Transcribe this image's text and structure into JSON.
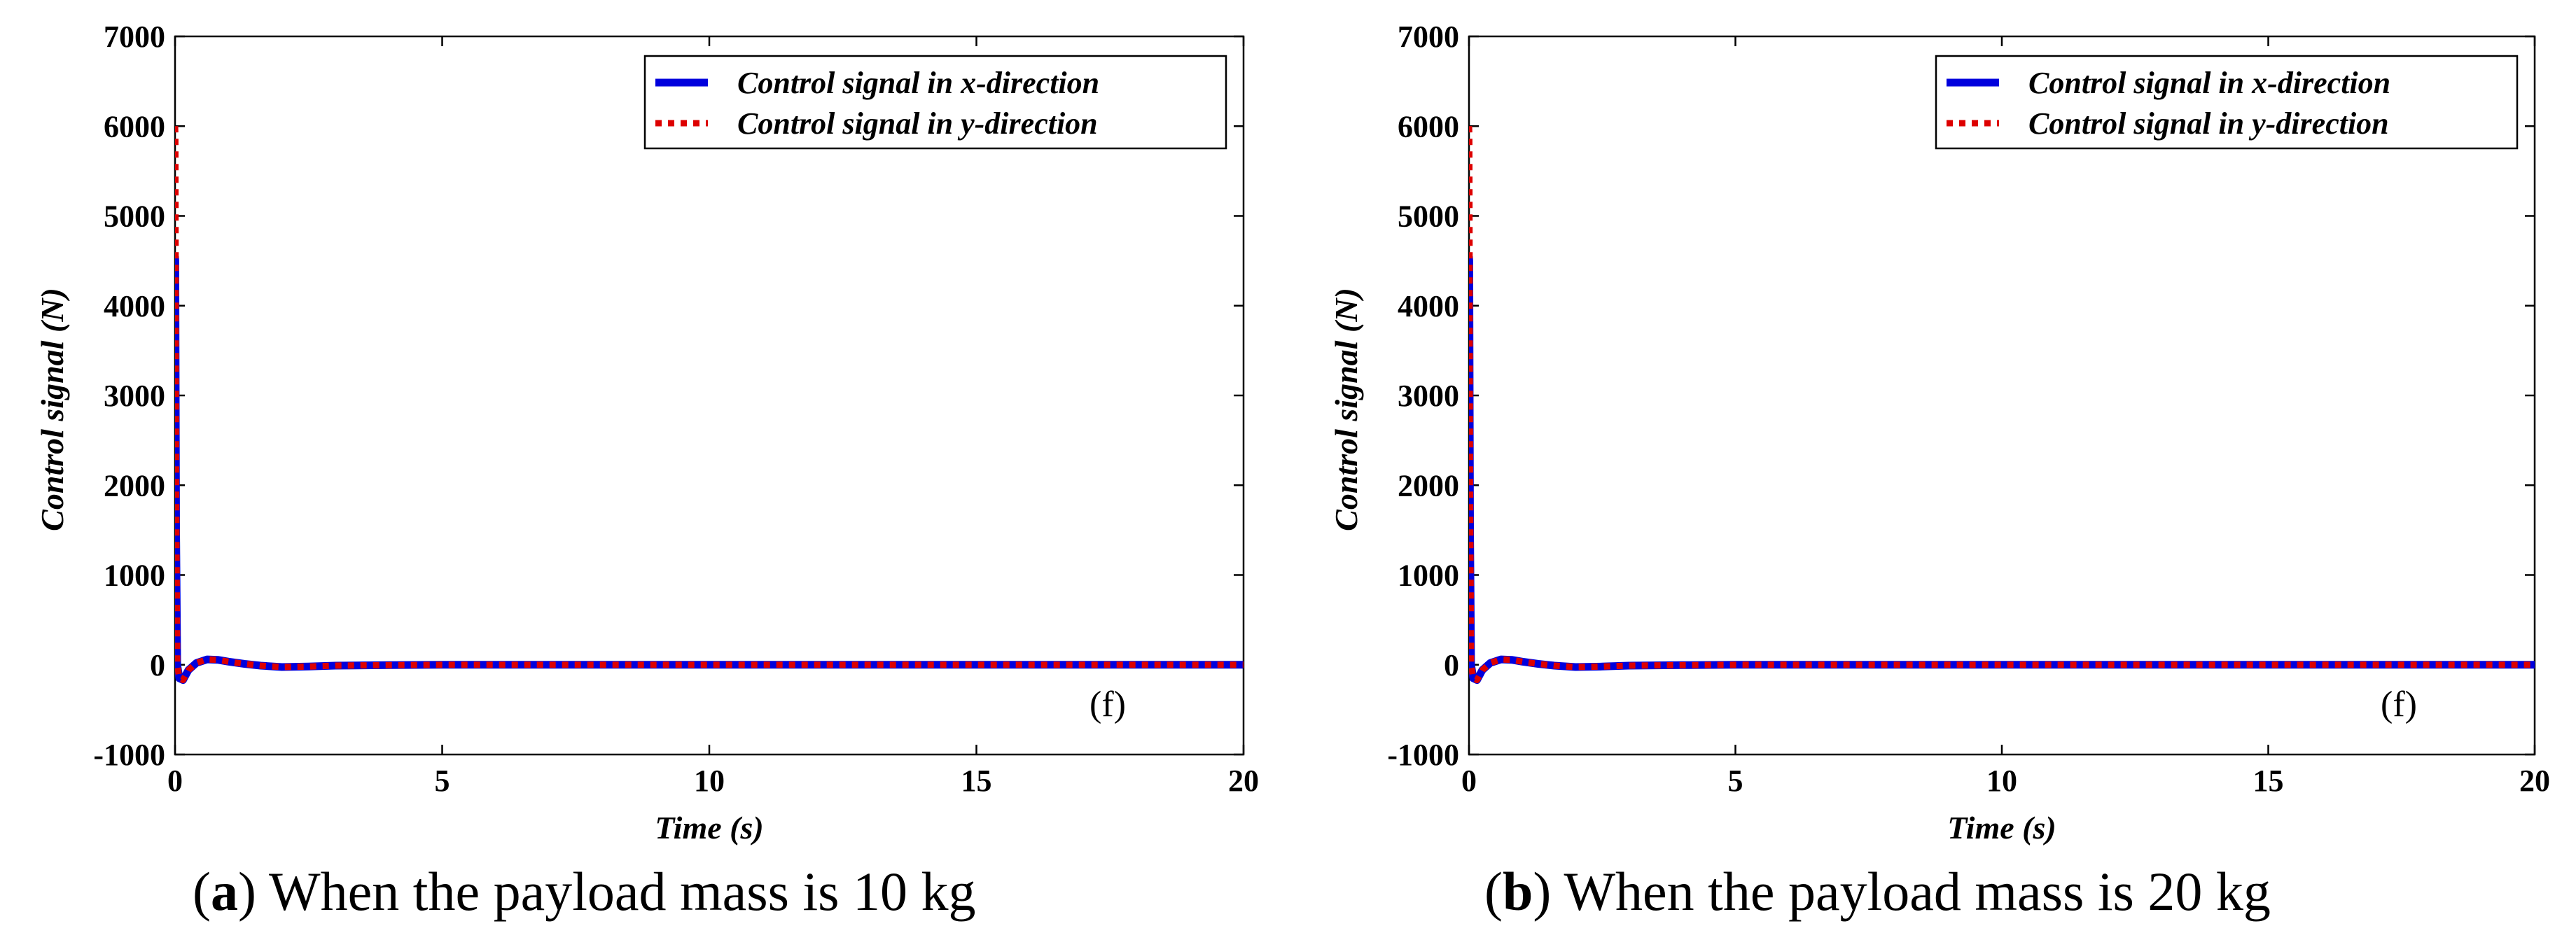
{
  "chart_data": [
    {
      "type": "line",
      "panel": "a",
      "caption_letter": "a",
      "caption_text": "When the payload mass is 10 kg",
      "annotation": "(f)",
      "xlabel": "Time (s)",
      "ylabel": "Control signal  (N)",
      "xlim": [
        0,
        20
      ],
      "ylim": [
        -1000,
        7000
      ],
      "xticks": [
        0,
        5,
        10,
        15,
        20
      ],
      "yticks": [
        -1000,
        0,
        1000,
        2000,
        3000,
        4000,
        5000,
        6000,
        7000
      ],
      "legend_position": "top-right",
      "series": [
        {
          "name": "Control signal in x-direction",
          "color": "#0000dd",
          "style": "solid",
          "x": [
            0,
            0.005,
            0.02,
            0.04,
            0.08,
            0.15,
            0.25,
            0.4,
            0.6,
            0.8,
            1.0,
            1.3,
            1.6,
            2.0,
            2.5,
            3.0,
            4.0,
            5.0,
            7.0,
            10.0,
            15.0,
            20.0
          ],
          "y": [
            4550,
            4500,
            1500,
            0,
            -150,
            -170,
            -60,
            20,
            60,
            55,
            35,
            10,
            -10,
            -25,
            -20,
            -10,
            -4,
            0,
            0,
            0,
            0,
            0
          ]
        },
        {
          "name": "Control signal in y-direction",
          "color": "#dd0000",
          "style": "dotted",
          "x": [
            0,
            0.005,
            0.02,
            0.04,
            0.08,
            0.15,
            0.25,
            0.4,
            0.6,
            0.8,
            1.0,
            1.3,
            1.6,
            2.0,
            2.5,
            3.0,
            4.0,
            5.0,
            7.0,
            10.0,
            15.0,
            20.0
          ],
          "y": [
            6000,
            5900,
            2000,
            0,
            -150,
            -170,
            -60,
            20,
            60,
            55,
            35,
            10,
            -10,
            -25,
            -20,
            -10,
            -4,
            0,
            0,
            0,
            0,
            0
          ]
        }
      ]
    },
    {
      "type": "line",
      "panel": "b",
      "caption_letter": "b",
      "caption_text": "When the payload mass is 20 kg",
      "annotation": "(f)",
      "xlabel": "Time (s)",
      "ylabel": "Control signal  (N)",
      "xlim": [
        0,
        20
      ],
      "ylim": [
        -1000,
        7000
      ],
      "xticks": [
        0,
        5,
        10,
        15,
        20
      ],
      "yticks": [
        -1000,
        0,
        1000,
        2000,
        3000,
        4000,
        5000,
        6000,
        7000
      ],
      "legend_position": "top-right",
      "series": [
        {
          "name": "Control signal in x-direction",
          "color": "#0000dd",
          "style": "solid",
          "x": [
            0,
            0.005,
            0.02,
            0.04,
            0.08,
            0.15,
            0.25,
            0.4,
            0.6,
            0.8,
            1.0,
            1.3,
            1.6,
            2.0,
            2.5,
            3.0,
            4.0,
            5.0,
            7.0,
            10.0,
            15.0,
            20.0
          ],
          "y": [
            4550,
            4500,
            1500,
            0,
            -150,
            -170,
            -60,
            20,
            60,
            55,
            35,
            10,
            -10,
            -25,
            -20,
            -10,
            -4,
            0,
            0,
            0,
            0,
            0
          ]
        },
        {
          "name": "Control signal in y-direction",
          "color": "#dd0000",
          "style": "dotted",
          "x": [
            0,
            0.005,
            0.02,
            0.04,
            0.08,
            0.15,
            0.25,
            0.4,
            0.6,
            0.8,
            1.0,
            1.3,
            1.6,
            2.0,
            2.5,
            3.0,
            4.0,
            5.0,
            7.0,
            10.0,
            15.0,
            20.0
          ],
          "y": [
            6000,
            5900,
            2000,
            0,
            -150,
            -170,
            -60,
            20,
            60,
            55,
            35,
            10,
            -10,
            -25,
            -20,
            -10,
            -4,
            0,
            0,
            0,
            0,
            0
          ]
        }
      ]
    }
  ]
}
